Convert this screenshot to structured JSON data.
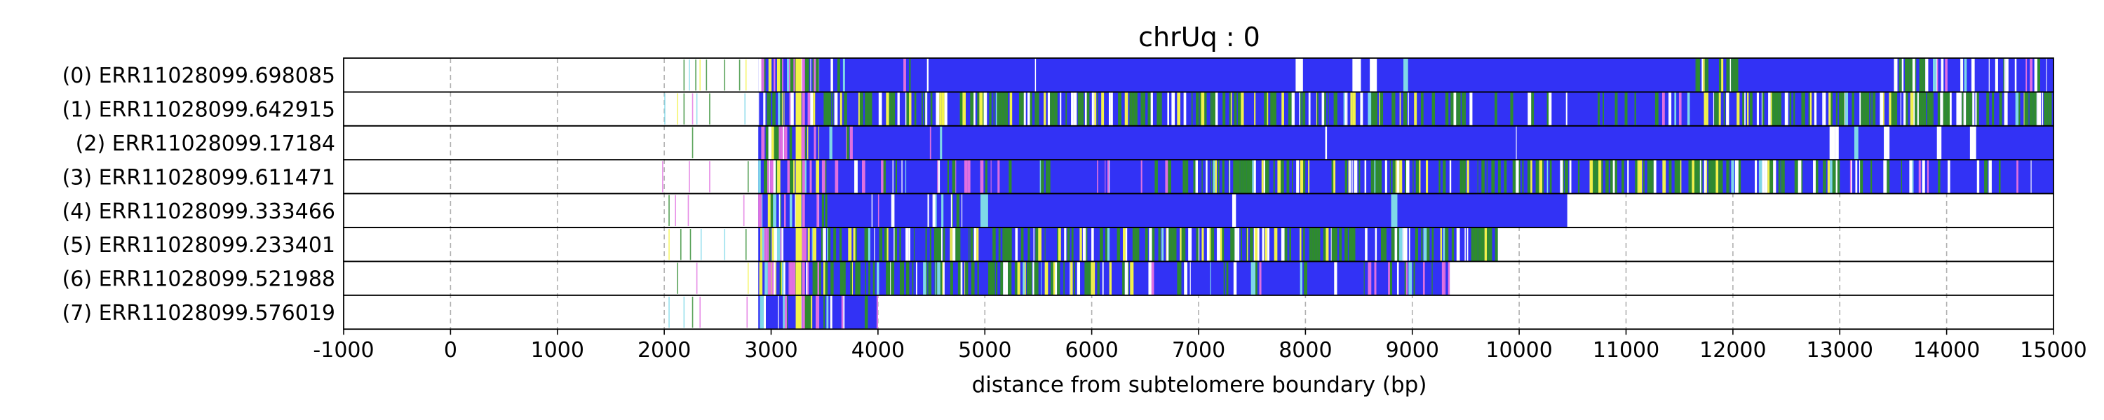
{
  "chart_data": {
    "type": "heatmap",
    "title": "chrUq : 0",
    "xlabel": "distance from subtelomere boundary (bp)",
    "ylabel": "",
    "xlim": [
      -1000,
      15000
    ],
    "xticks": [
      -1000,
      0,
      1000,
      2000,
      3000,
      4000,
      5000,
      6000,
      7000,
      8000,
      9000,
      10000,
      11000,
      12000,
      13000,
      14000,
      15000
    ],
    "grid": "vertical dashed",
    "colors": {
      "blue": "#3232f5",
      "green": "#2e8b2e",
      "yellow": "#f2f24a",
      "magenta": "#e070e0",
      "cyan": "#7fd8e8",
      "white": "#ffffff",
      "grid": "#b0b0b0"
    },
    "reads": [
      {
        "label": "(0) ERR11028099.698085",
        "read_start": 2880,
        "read_end": 15000,
        "pre_marks": [
          2180,
          2230,
          2290,
          2330,
          2390,
          2560,
          2700,
          2760
        ],
        "segments": [
          {
            "from": 2880,
            "to": 3450,
            "mix": "mixed"
          },
          {
            "from": 3450,
            "to": 4600,
            "mix": "blue_light"
          },
          {
            "from": 4600,
            "to": 11650,
            "mix": "blue"
          },
          {
            "from": 11650,
            "to": 12050,
            "mix": "green"
          },
          {
            "from": 12050,
            "to": 13500,
            "mix": "blue"
          },
          {
            "from": 13500,
            "to": 13800,
            "mix": "green"
          },
          {
            "from": 13800,
            "to": 15000,
            "mix": "blue_light"
          }
        ]
      },
      {
        "label": "(1) ERR11028099.642915",
        "read_start": 2880,
        "read_end": 15000,
        "pre_marks": [
          2000,
          2120,
          2180,
          2260,
          2300,
          2420,
          2750
        ],
        "segments": [
          {
            "from": 2880,
            "to": 3450,
            "mix": "mixed"
          },
          {
            "from": 3450,
            "to": 9500,
            "mix": "green_mixed"
          },
          {
            "from": 9500,
            "to": 11700,
            "mix": "blue_light"
          },
          {
            "from": 11700,
            "to": 15000,
            "mix": "green_mixed"
          }
        ]
      },
      {
        "label": "(2) ERR11028099.17184",
        "read_start": 2880,
        "read_end": 15000,
        "pre_marks": [
          2260
        ],
        "segments": [
          {
            "from": 2880,
            "to": 3450,
            "mix": "mixed"
          },
          {
            "from": 3450,
            "to": 4600,
            "mix": "blue_light"
          },
          {
            "from": 4600,
            "to": 15000,
            "mix": "blue"
          }
        ]
      },
      {
        "label": "(3) ERR11028099.611471",
        "read_start": 2880,
        "read_end": 15000,
        "pre_marks": [
          1980,
          2230,
          2420,
          2780
        ],
        "segments": [
          {
            "from": 2880,
            "to": 3450,
            "mix": "mixed"
          },
          {
            "from": 3450,
            "to": 6800,
            "mix": "blue_light"
          },
          {
            "from": 6800,
            "to": 13000,
            "mix": "green_mixed"
          },
          {
            "from": 13000,
            "to": 15000,
            "mix": "blue_light"
          }
        ]
      },
      {
        "label": "(4) ERR11028099.333466",
        "read_start": 2880,
        "read_end": 10450,
        "pre_marks": [
          2040,
          2100,
          2220,
          2740
        ],
        "segments": [
          {
            "from": 2880,
            "to": 3450,
            "mix": "mixed"
          },
          {
            "from": 3450,
            "to": 4800,
            "mix": "blue_light"
          },
          {
            "from": 4800,
            "to": 10450,
            "mix": "blue"
          }
        ]
      },
      {
        "label": "(5) ERR11028099.233401",
        "read_start": 2880,
        "read_end": 9800,
        "pre_marks": [
          2040,
          2150,
          2240,
          2340,
          2560,
          2760
        ],
        "segments": [
          {
            "from": 2880,
            "to": 3450,
            "mix": "mixed"
          },
          {
            "from": 3450,
            "to": 9800,
            "mix": "green_mixed"
          }
        ]
      },
      {
        "label": "(6) ERR11028099.521988",
        "read_start": 2880,
        "read_end": 9350,
        "pre_marks": [
          2120,
          2300,
          2780
        ],
        "segments": [
          {
            "from": 2880,
            "to": 3450,
            "mix": "mixed"
          },
          {
            "from": 3450,
            "to": 6400,
            "mix": "green_mixed"
          },
          {
            "from": 6400,
            "to": 9350,
            "mix": "blue_light"
          }
        ]
      },
      {
        "label": "(7) ERR11028099.576019",
        "read_start": 2880,
        "read_end": 4000,
        "pre_marks": [
          2040,
          2180,
          2260,
          2330,
          2770
        ],
        "segments": [
          {
            "from": 2880,
            "to": 3450,
            "mix": "mixed"
          },
          {
            "from": 3450,
            "to": 4000,
            "mix": "blue_light"
          }
        ]
      }
    ]
  }
}
